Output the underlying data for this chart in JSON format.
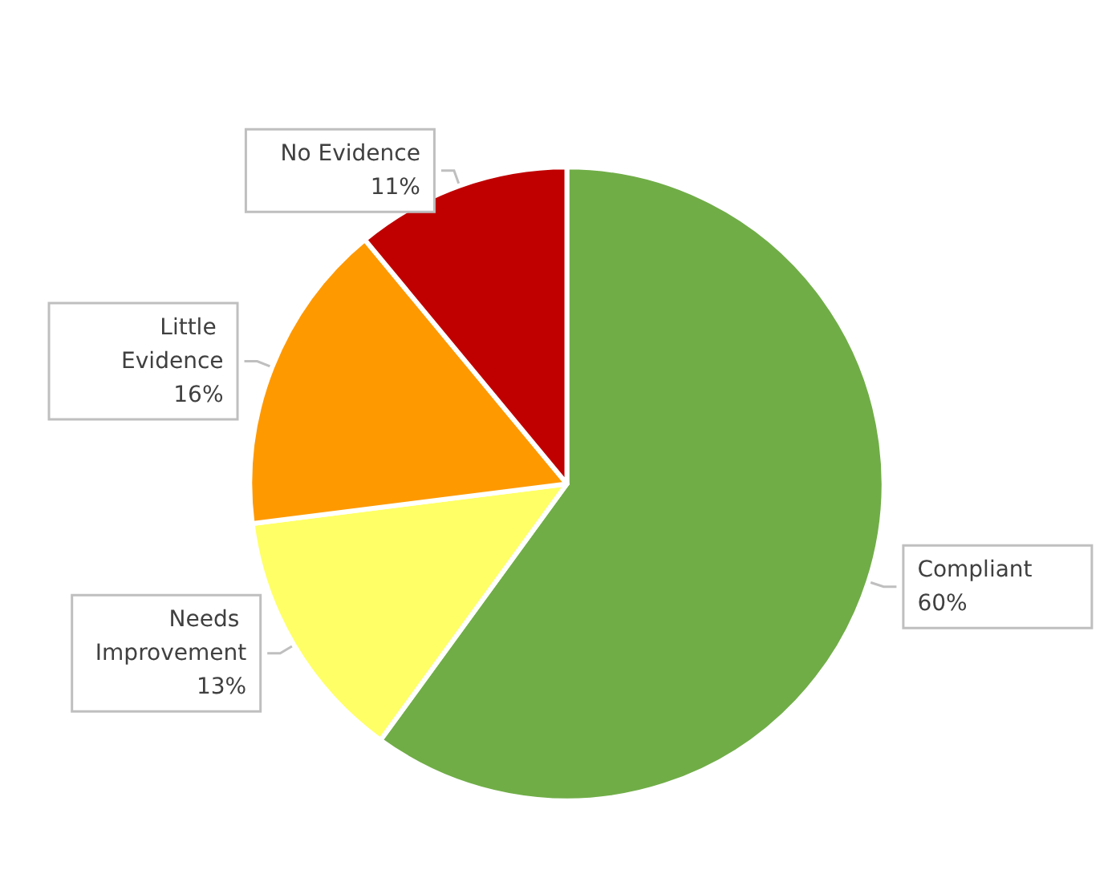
{
  "chart_data": {
    "type": "pie",
    "categories": [
      "Compliant",
      "Needs Improvement",
      "Little Evidence",
      "No Evidence"
    ],
    "values": [
      60,
      13,
      16,
      11
    ],
    "colors": [
      "#70ad47",
      "#ffff66",
      "#ff9900",
      "#c00000"
    ],
    "value_labels": [
      "60%",
      "13%",
      "16%",
      "11%"
    ],
    "legend": false
  }
}
